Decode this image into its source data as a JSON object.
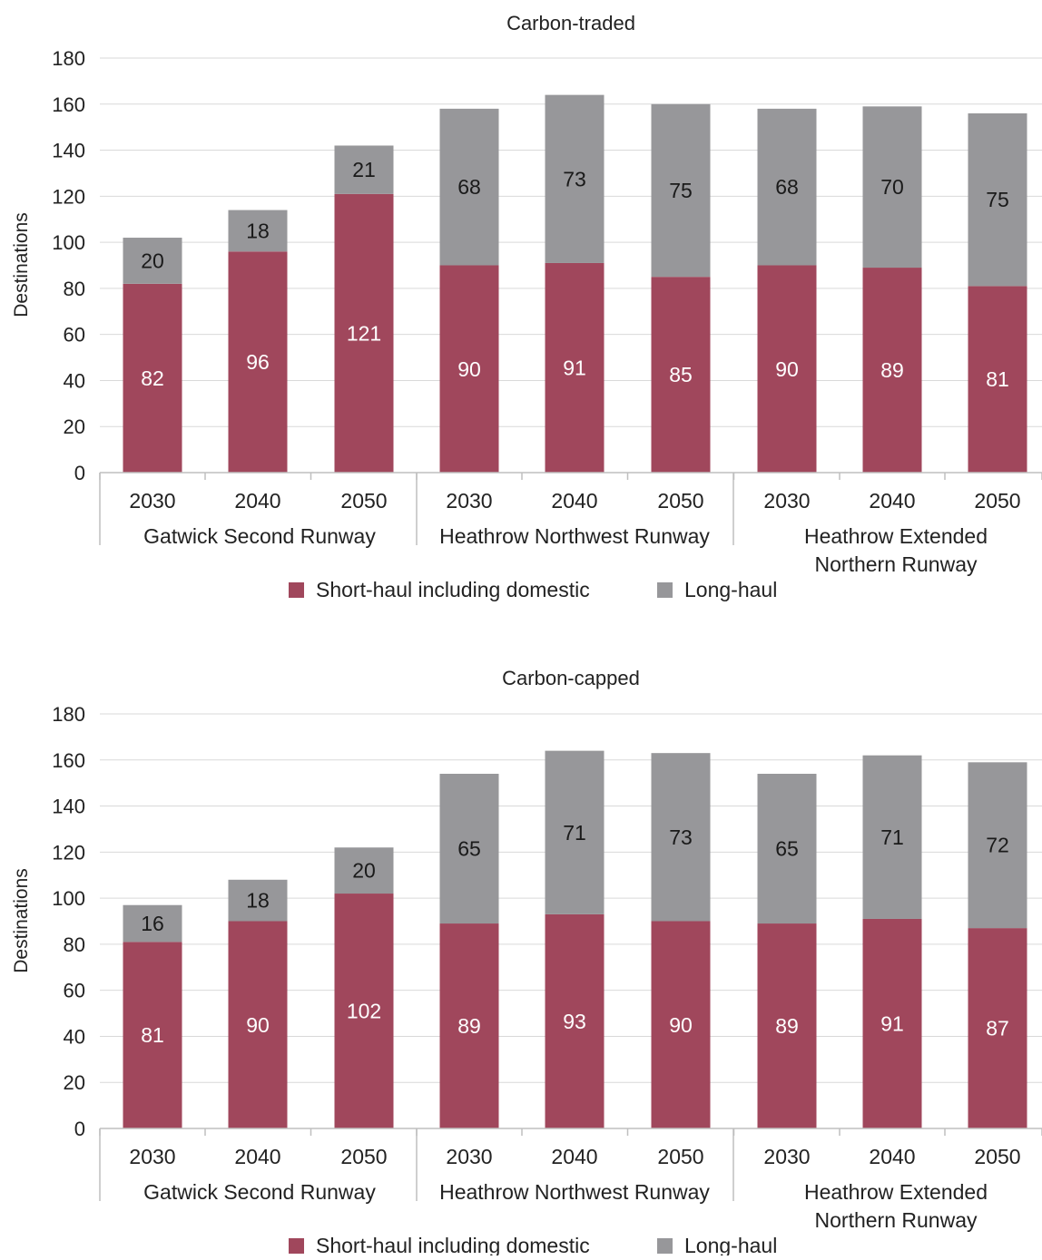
{
  "colors": {
    "short_haul": "#a0475c",
    "long_haul": "#97979a"
  },
  "chart_data": [
    {
      "type": "bar",
      "stacked": true,
      "title": "Carbon-traded",
      "ylabel": "Destinations",
      "ylim": [
        0,
        180
      ],
      "yticks": [
        0,
        20,
        40,
        60,
        80,
        100,
        120,
        140,
        160,
        180
      ],
      "grid": true,
      "legend_position": "bottom",
      "groups": [
        {
          "name_lines": [
            "Gatwick Second Runway"
          ],
          "categories": [
            "2030",
            "2040",
            "2050"
          ]
        },
        {
          "name_lines": [
            "Heathrow Northwest Runway"
          ],
          "categories": [
            "2030",
            "2040",
            "2050"
          ]
        },
        {
          "name_lines": [
            "Heathrow Extended",
            "Northern Runway"
          ],
          "categories": [
            "2030",
            "2040",
            "2050"
          ]
        }
      ],
      "series": [
        {
          "name": "Short-haul including domestic",
          "values": [
            82,
            96,
            121,
            90,
            91,
            85,
            90,
            89,
            81
          ]
        },
        {
          "name": "Long-haul",
          "values": [
            20,
            18,
            21,
            68,
            73,
            75,
            68,
            70,
            75
          ]
        }
      ]
    },
    {
      "type": "bar",
      "stacked": true,
      "title": "Carbon-capped",
      "ylabel": "Destinations",
      "ylim": [
        0,
        180
      ],
      "yticks": [
        0,
        20,
        40,
        60,
        80,
        100,
        120,
        140,
        160,
        180
      ],
      "grid": true,
      "legend_position": "bottom",
      "groups": [
        {
          "name_lines": [
            "Gatwick Second Runway"
          ],
          "categories": [
            "2030",
            "2040",
            "2050"
          ]
        },
        {
          "name_lines": [
            "Heathrow Northwest Runway"
          ],
          "categories": [
            "2030",
            "2040",
            "2050"
          ]
        },
        {
          "name_lines": [
            "Heathrow Extended",
            "Northern Runway"
          ],
          "categories": [
            "2030",
            "2040",
            "2050"
          ]
        }
      ],
      "series": [
        {
          "name": "Short-haul including domestic",
          "values": [
            81,
            90,
            102,
            89,
            93,
            90,
            89,
            91,
            87
          ]
        },
        {
          "name": "Long-haul",
          "values": [
            16,
            18,
            20,
            65,
            71,
            73,
            65,
            71,
            72
          ]
        }
      ]
    }
  ]
}
